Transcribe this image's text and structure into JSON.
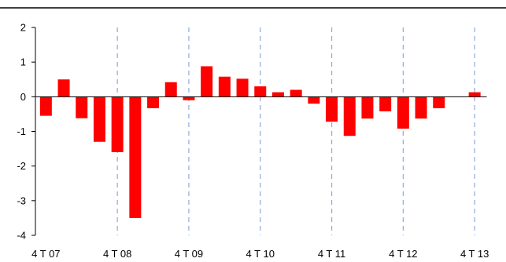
{
  "chart_data": {
    "type": "bar",
    "title": "",
    "xlabel": "",
    "ylabel": "",
    "ylim": [
      -4,
      2
    ],
    "yticks": [
      "2",
      "1",
      "0",
      "-1",
      "-2",
      "-3",
      "-4"
    ],
    "x_tick_labels": [
      "4 T 07",
      "4 T 08",
      "4 T 09",
      "4 T 10",
      "4 T 11",
      "4 T 12",
      "4 T 13"
    ],
    "grid": "vertical dashed lines at each labeled quarter",
    "legend": "none",
    "bar_color": "#ff0000",
    "gridline_color": "#8eaadb",
    "values": [
      -0.55,
      0.5,
      -0.62,
      -1.3,
      -1.6,
      -3.5,
      -0.33,
      0.42,
      -0.1,
      0.88,
      0.58,
      0.52,
      0.3,
      0.13,
      0.2,
      -0.2,
      -0.72,
      -1.13,
      -0.63,
      -0.42,
      -0.92,
      -0.63,
      -0.33,
      0,
      0.13
    ]
  }
}
